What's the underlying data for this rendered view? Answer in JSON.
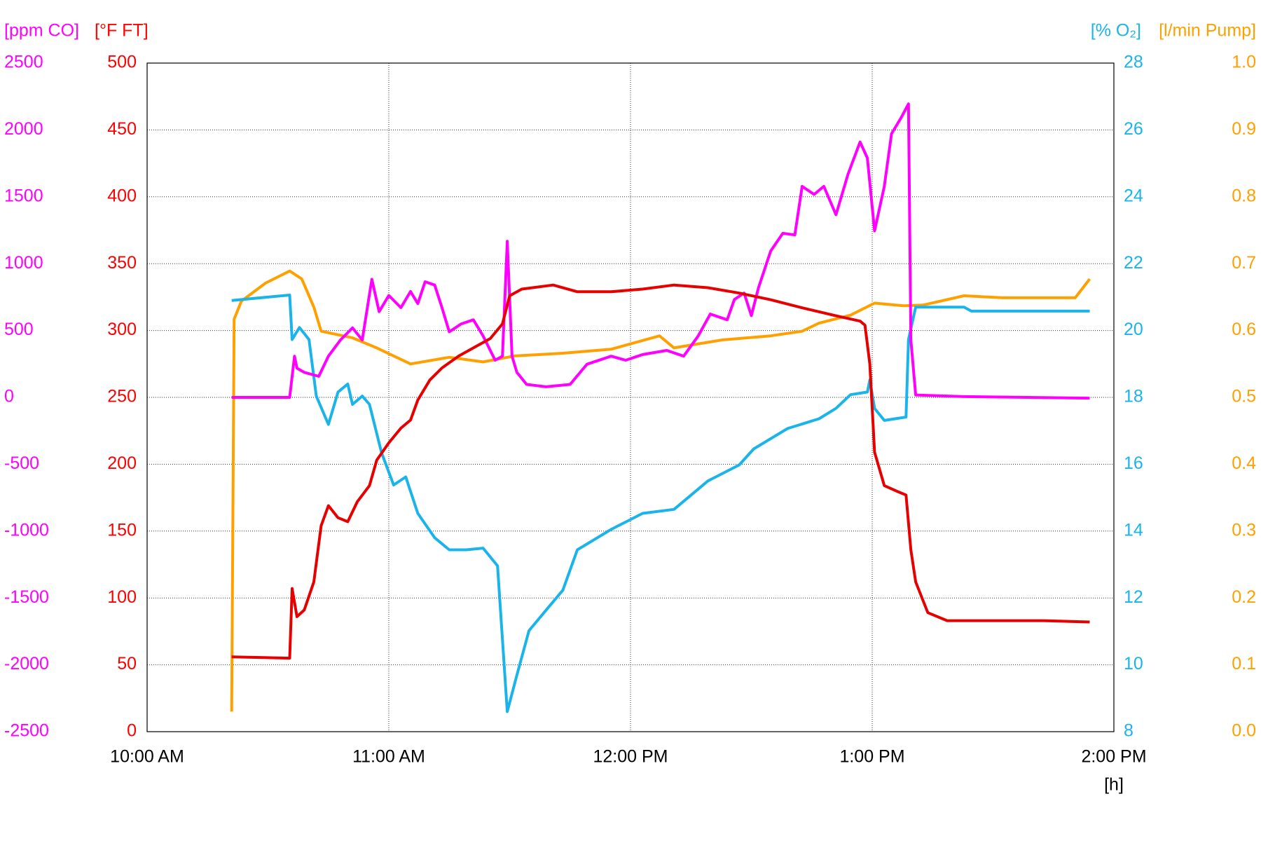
{
  "chart_data": {
    "type": "line",
    "xlim": [
      10,
      14
    ],
    "xticks": [
      {
        "value": 10,
        "label": "10:00 AM"
      },
      {
        "value": 11,
        "label": "11:00 AM"
      },
      {
        "value": 12,
        "label": "12:00 PM"
      },
      {
        "value": 13,
        "label": "1:00 PM"
      },
      {
        "value": 14,
        "label": "2:00 PM"
      }
    ],
    "xlabel": "[h]",
    "grid": true,
    "axes": [
      {
        "label": "[ppm CO]",
        "color": "#ff00ff",
        "lim": [
          -2500,
          2500
        ],
        "ticks": [
          -2500,
          -2000,
          -1500,
          -1000,
          -500,
          0,
          500,
          1000,
          1500,
          2000,
          2500
        ]
      },
      {
        "label": "[°F FT]",
        "color": "#ff0000",
        "lim": [
          0,
          500
        ],
        "ticks": [
          0,
          50,
          100,
          150,
          200,
          250,
          300,
          350,
          400,
          450,
          500
        ]
      },
      {
        "label": "[% O₂]",
        "color": "#1ab4ea",
        "lim": [
          8,
          28
        ],
        "ticks": [
          8,
          10,
          12,
          14,
          16,
          18,
          20,
          22,
          24,
          26,
          28
        ]
      },
      {
        "label": "[l/min Pump]",
        "color": "#ffa000",
        "lim": [
          0,
          1
        ],
        "ticks": [
          {
            "value": 0,
            "label": "0.0"
          },
          0.1,
          0.2,
          0.3,
          0.4,
          0.5,
          0.6,
          0.7,
          0.8,
          0.9,
          {
            "value": 1,
            "label": "1.0"
          }
        ]
      }
    ],
    "series": [
      {
        "axis": 3,
        "color": "#ffa000",
        "x": [
          10.35,
          10.36,
          10.39,
          10.49,
          10.59,
          10.64,
          10.69,
          10.72,
          10.85,
          10.95,
          11.09,
          11.25,
          11.39,
          11.52,
          11.72,
          11.92,
          12.12,
          12.18,
          12.38,
          12.58,
          12.71,
          12.78,
          12.91,
          13.01,
          13.13,
          13.21,
          13.38,
          13.54,
          13.84,
          13.9
        ],
        "values": [
          0.03,
          0.617,
          0.644,
          0.671,
          0.689,
          0.677,
          0.635,
          0.599,
          0.589,
          0.574,
          0.55,
          0.56,
          0.553,
          0.562,
          0.566,
          0.572,
          0.592,
          0.574,
          0.586,
          0.592,
          0.599,
          0.611,
          0.623,
          0.641,
          0.637,
          0.638,
          0.652,
          0.649,
          0.649,
          0.677
        ]
      },
      {
        "axis": 2,
        "color": "#1ab4ea",
        "x": [
          10.35,
          10.59,
          10.6,
          10.63,
          10.67,
          10.7,
          10.75,
          10.79,
          10.83,
          10.85,
          10.89,
          10.92,
          10.97,
          11.02,
          11.07,
          11.12,
          11.19,
          11.25,
          11.32,
          11.39,
          11.45,
          11.49,
          11.53,
          11.58,
          11.65,
          11.72,
          11.78,
          11.92,
          12.05,
          12.18,
          12.32,
          12.45,
          12.51,
          12.65,
          12.78,
          12.85,
          12.91,
          12.98,
          12.99,
          13.01,
          13.05,
          13.14,
          13.15,
          13.18,
          13.38,
          13.41,
          13.9
        ],
        "values": [
          20.9,
          21.06,
          19.73,
          20.09,
          19.73,
          18.04,
          17.19,
          18.16,
          18.4,
          17.79,
          18.04,
          17.79,
          16.34,
          15.38,
          15.62,
          14.53,
          13.8,
          13.44,
          13.44,
          13.49,
          12.96,
          8.6,
          9.69,
          11.02,
          11.63,
          12.23,
          13.44,
          14.05,
          14.53,
          14.65,
          15.5,
          15.98,
          16.46,
          17.07,
          17.36,
          17.67,
          18.08,
          18.16,
          18.52,
          17.67,
          17.31,
          17.41,
          19.73,
          20.7,
          20.7,
          20.58,
          20.58
        ]
      },
      {
        "axis": 0,
        "color": "#ff00ff",
        "x": [
          10.35,
          10.59,
          10.61,
          10.62,
          10.65,
          10.71,
          10.75,
          10.8,
          10.85,
          10.89,
          10.93,
          10.96,
          11.0,
          11.05,
          11.09,
          11.12,
          11.15,
          11.19,
          11.22,
          11.25,
          11.3,
          11.35,
          11.39,
          11.44,
          11.47,
          11.49,
          11.51,
          11.53,
          11.57,
          11.65,
          11.75,
          11.82,
          11.92,
          11.98,
          12.05,
          12.15,
          12.22,
          12.28,
          12.33,
          12.4,
          12.43,
          12.47,
          12.5,
          12.53,
          12.58,
          12.63,
          12.68,
          12.71,
          12.76,
          12.8,
          12.85,
          12.9,
          12.95,
          12.98,
          13.01,
          13.05,
          13.08,
          13.12,
          13.15,
          13.16,
          13.18,
          13.38,
          13.9
        ],
        "values": [
          0,
          0,
          308,
          218,
          187,
          157,
          308,
          429,
          520,
          429,
          883,
          641,
          762,
          671,
          792,
          701,
          865,
          840,
          671,
          490,
          550,
          580,
          459,
          278,
          308,
          1167,
          308,
          187,
          97,
          79,
          97,
          248,
          308,
          278,
          320,
          351,
          308,
          459,
          623,
          580,
          732,
          780,
          611,
          822,
          1094,
          1227,
          1215,
          1578,
          1518,
          1578,
          1366,
          1669,
          1910,
          1790,
          1245,
          1578,
          1971,
          2092,
          2195,
          429,
          18,
          6,
          -6
        ]
      },
      {
        "axis": 1,
        "color": "#e60000",
        "x": [
          10.35,
          10.59,
          10.6,
          10.62,
          10.65,
          10.69,
          10.72,
          10.75,
          10.79,
          10.83,
          10.87,
          10.92,
          10.95,
          11.0,
          11.05,
          11.09,
          11.12,
          11.17,
          11.22,
          11.29,
          11.35,
          11.42,
          11.47,
          11.5,
          11.55,
          11.68,
          11.78,
          11.92,
          12.05,
          12.18,
          12.32,
          12.45,
          12.58,
          12.71,
          12.85,
          12.95,
          12.97,
          12.99,
          13.01,
          13.05,
          13.1,
          13.14,
          13.16,
          13.18,
          13.23,
          13.31,
          13.54,
          13.71,
          13.9
        ],
        "values": [
          56,
          55,
          107,
          86,
          91,
          112,
          154,
          169,
          160,
          157,
          172,
          184,
          203,
          216,
          227,
          233,
          248,
          263,
          272,
          281,
          287,
          294,
          305,
          326,
          331,
          334,
          329,
          329,
          331,
          334,
          332,
          328,
          323,
          317,
          311,
          307,
          304,
          275,
          209,
          184,
          180,
          177,
          136,
          112,
          89,
          83,
          83,
          83,
          82
        ]
      }
    ]
  }
}
